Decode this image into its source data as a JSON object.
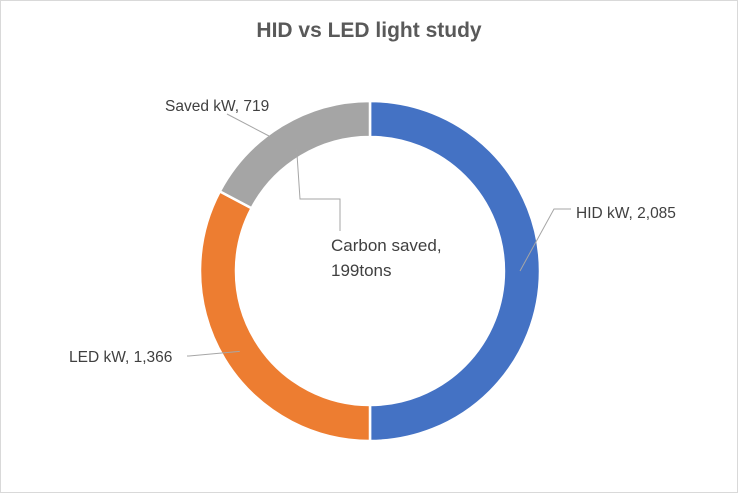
{
  "chart_data": {
    "type": "pie",
    "variant": "doughnut",
    "title": "HID vs LED light study",
    "series": [
      {
        "name": "HID kW",
        "value": 2085,
        "display_value": "2,085",
        "color": "#4472C4"
      },
      {
        "name": "LED kW",
        "value": 1366,
        "display_value": "1,366",
        "color": "#ED7D31"
      },
      {
        "name": "Saved kW",
        "value": 719,
        "display_value": "719",
        "color": "#A5A5A5"
      }
    ],
    "center_label": {
      "line1": "Carbon saved,",
      "line2": "199tons"
    },
    "legend": "none"
  }
}
